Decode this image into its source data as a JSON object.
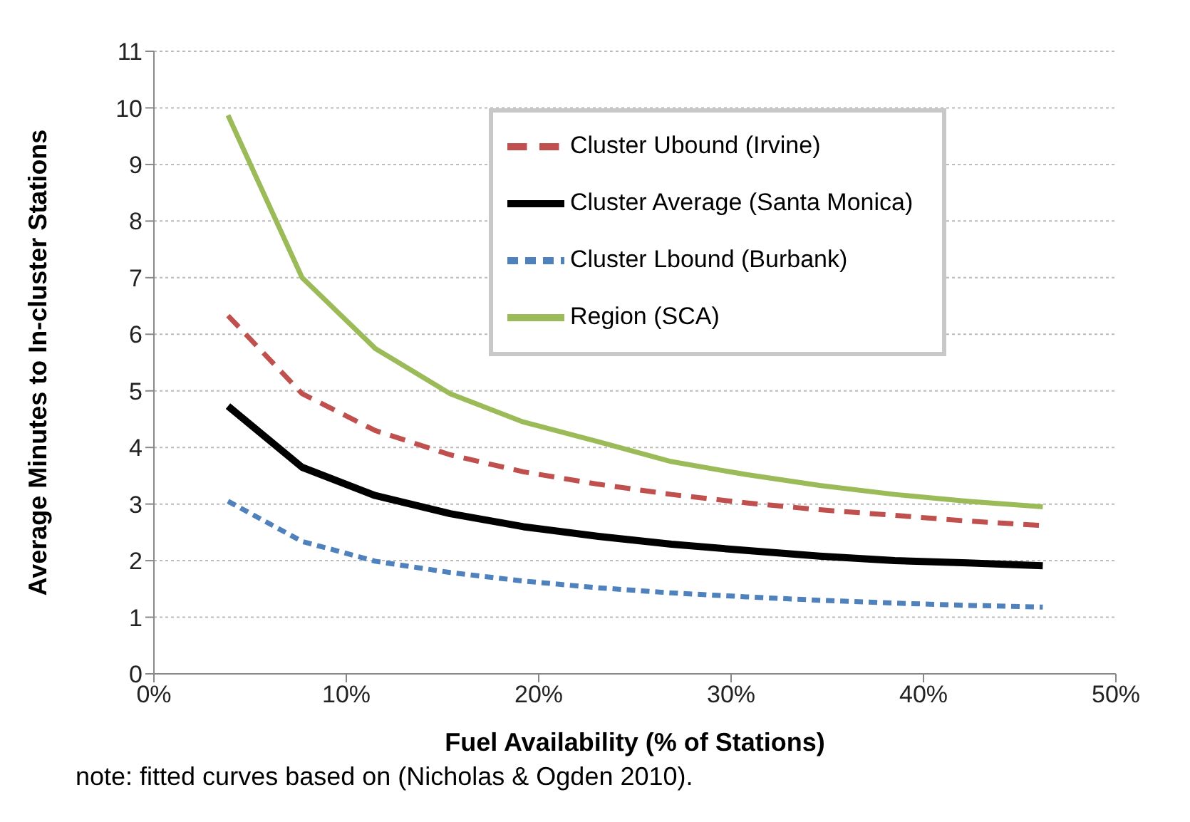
{
  "chart_data": {
    "type": "line",
    "xlabel": "Fuel Availability (% of Stations)",
    "ylabel": "Average Minutes to In-cluster Stations",
    "x": [
      3.85,
      7.7,
      11.5,
      15.4,
      19.2,
      23.1,
      26.9,
      30.8,
      34.6,
      38.5,
      42.3,
      46.2
    ],
    "series": [
      {
        "name": "Cluster Ubound (Irvine)",
        "color": "#c0504d",
        "line_style": "dashed",
        "values": [
          6.33,
          4.95,
          4.3,
          3.87,
          3.57,
          3.35,
          3.17,
          3.02,
          2.9,
          2.8,
          2.7,
          2.62
        ]
      },
      {
        "name": "Cluster Average (Santa Monica)",
        "color": "#000000",
        "line_style": "solid",
        "values": [
          4.73,
          3.65,
          3.15,
          2.83,
          2.6,
          2.43,
          2.29,
          2.18,
          2.08,
          2.0,
          1.96,
          1.91
        ]
      },
      {
        "name": "Cluster Lbound (Burbank)",
        "color": "#4f81bd",
        "line_style": "dotted",
        "values": [
          3.05,
          2.34,
          1.99,
          1.79,
          1.64,
          1.52,
          1.43,
          1.36,
          1.3,
          1.25,
          1.21,
          1.18
        ]
      },
      {
        "name": "Region (SCA)",
        "color": "#9bbb59",
        "line_style": "solid",
        "values": [
          9.87,
          7.0,
          5.75,
          4.95,
          4.45,
          4.1,
          3.75,
          3.52,
          3.33,
          3.17,
          3.05,
          2.95
        ]
      }
    ],
    "xlim": [
      0,
      50
    ],
    "xticks": [
      {
        "value": 0,
        "label": "0%"
      },
      {
        "value": 10,
        "label": "10%"
      },
      {
        "value": 20,
        "label": "20%"
      },
      {
        "value": 30,
        "label": "30%"
      },
      {
        "value": 40,
        "label": "40%"
      },
      {
        "value": 50,
        "label": "50%"
      }
    ],
    "ylim": [
      0,
      11
    ],
    "yticks": [
      0,
      1,
      2,
      3,
      4,
      5,
      6,
      7,
      8,
      9,
      10,
      11
    ],
    "grid": "y",
    "legend": "top right",
    "marker": "none",
    "annotations": [
      "note: fitted curves based on (Nicholas & Ogden 2010)."
    ]
  }
}
